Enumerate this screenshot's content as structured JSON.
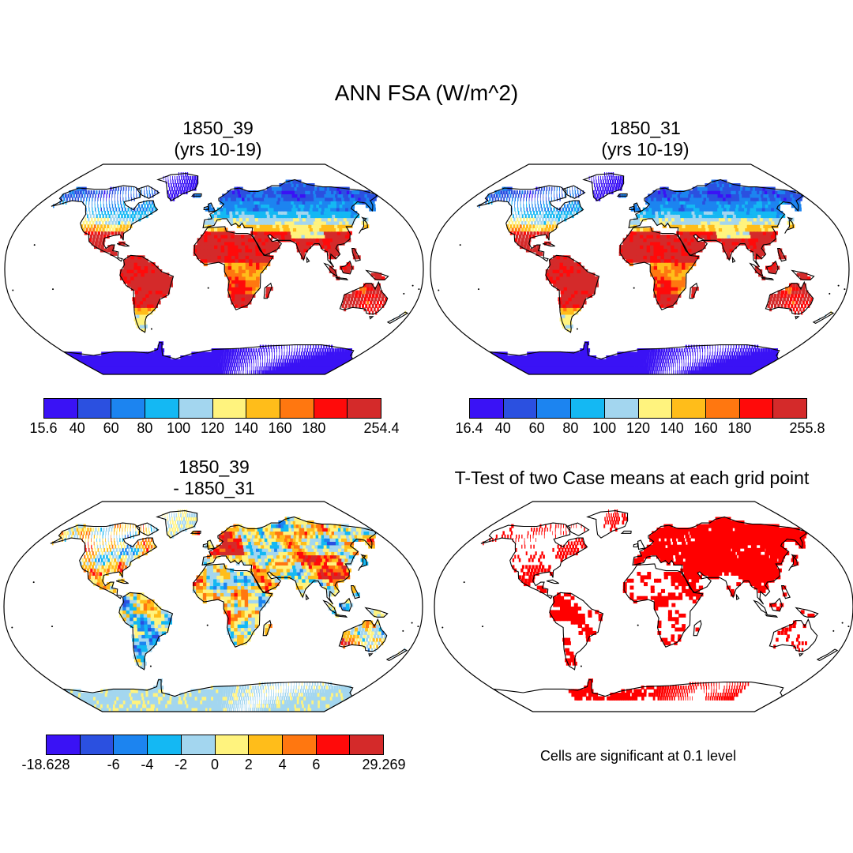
{
  "figure": {
    "title": "ANN FSA (W/m^2)",
    "colors": [
      "#3a12f5",
      "#2b50e0",
      "#1c84f0",
      "#14b8f3",
      "#a3d6ef",
      "#fff37e",
      "#ffbd1a",
      "#ff7710",
      "#ff0a0a",
      "#d42a2a"
    ],
    "land_outline_color": "#000000"
  },
  "panels": {
    "top_left": {
      "title_line1": "1850_39",
      "title_line2": "(yrs 10-19)",
      "colorbar_labels": [
        "15.6",
        "40",
        "60",
        "80",
        "100",
        "120",
        "140",
        "160",
        "180",
        "254.4"
      ]
    },
    "top_right": {
      "title_line1": "1850_31",
      "title_line2": "(yrs 10-19)",
      "colorbar_labels": [
        "16.4",
        "40",
        "60",
        "80",
        "100",
        "120",
        "140",
        "160",
        "180",
        "255.8"
      ]
    },
    "bottom_left": {
      "title_line1": "1850_39",
      "title_line2": "- 1850_31",
      "colorbar_labels": [
        "-18.628",
        "-6",
        "-4",
        "-2",
        "0",
        "2",
        "4",
        "6",
        "29.269"
      ]
    },
    "bottom_right": {
      "title": "T-Test of two Case means at each grid point",
      "note": "Cells are significant at 0.1 level",
      "significant_color": "#ff0000"
    }
  }
}
